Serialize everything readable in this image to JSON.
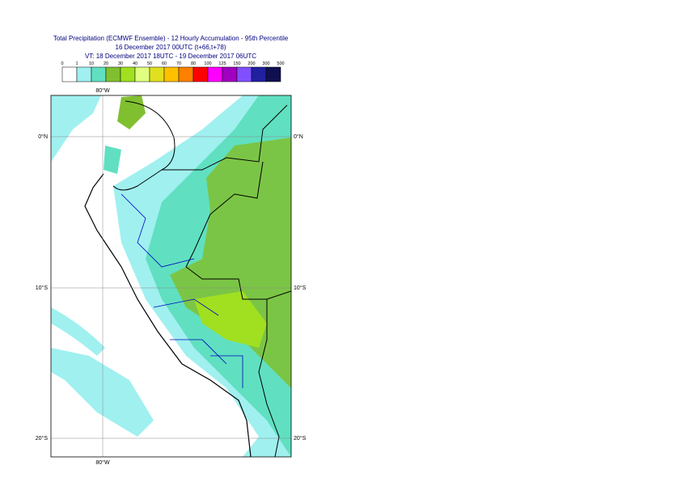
{
  "header": {
    "title": "Total Precipitation (ECMWF Ensemble) - 12 Hourly Accumulation - 95th Percentile",
    "base_time": "16 December 2017 00UTC (t+66,t+78)",
    "valid_time": "VT: 18 December 2017 18UTC - 19 December 2017 06UTC"
  },
  "legend": {
    "labels": [
      "0",
      "1",
      "10",
      "20",
      "30",
      "40",
      "50",
      "60",
      "70",
      "80",
      "100",
      "125",
      "150",
      "200",
      "300",
      "500"
    ],
    "colors": [
      "#ffffff",
      "#a0f0f0",
      "#60e0c0",
      "#80c030",
      "#a0e020",
      "#e0ff80",
      "#e0e020",
      "#ffc000",
      "#ff8000",
      "#ff0000",
      "#ff00ff",
      "#a000c0",
      "#8050ff",
      "#2020a0",
      "#101050"
    ]
  },
  "map": {
    "lon_labels": [
      "80°W"
    ],
    "lat_labels": [
      "0°N",
      "10°S",
      "20°S"
    ]
  }
}
